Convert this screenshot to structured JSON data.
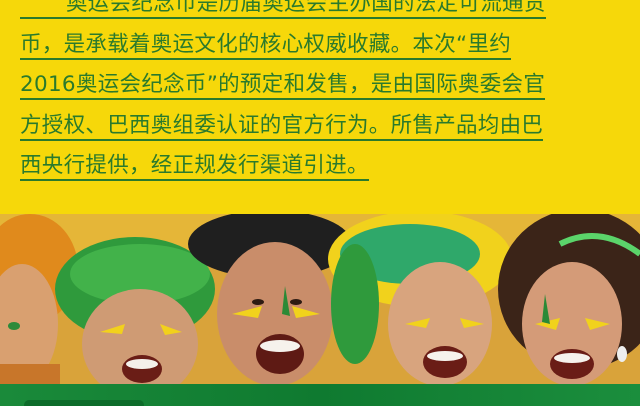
{
  "intro": {
    "lines": [
      "奥运会纪念币是历届奥运会主办国的法定可流通货",
      "币，是承载着奥运文化的核心权威收藏。本次“里约",
      "2016奥运会纪念币”的预定和发售，是由国际奥委会官",
      "方授权、巴西奥组委认证的官方行为。所售产品均由巴",
      "西央行提供，经正规发行渠道引进。"
    ]
  },
  "colors": {
    "background": "#f6d80a",
    "text": "#2a7a2c",
    "footer": "#1a8a3a"
  },
  "photo": {
    "subject": "crowd-of-brazil-fans-icon"
  }
}
